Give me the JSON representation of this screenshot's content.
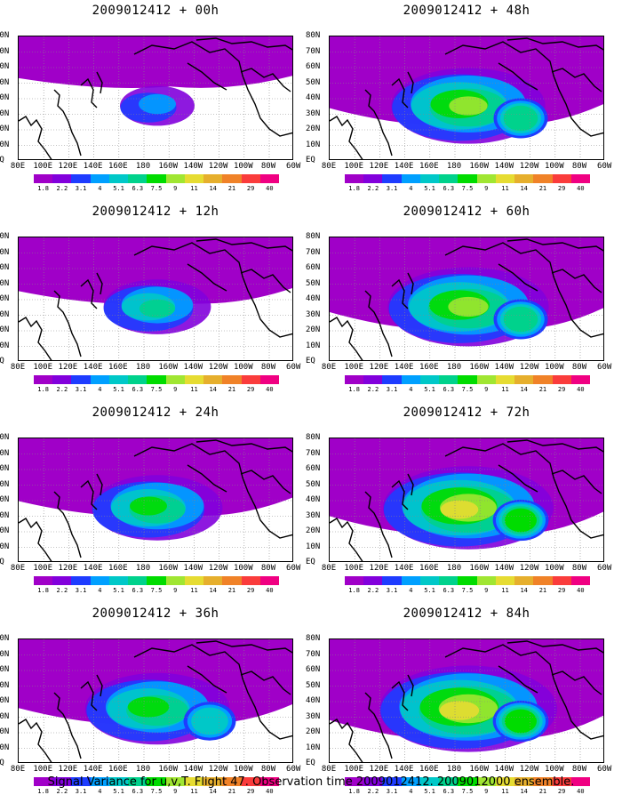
{
  "panels": [
    {
      "title": "2009012412 + 00h",
      "intensity": 0.15,
      "spread": 0.25
    },
    {
      "title": "2009012412 + 48h",
      "intensity": 0.62,
      "spread": 0.75
    },
    {
      "title": "2009012412 + 12h",
      "intensity": 0.35,
      "spread": 0.45
    },
    {
      "title": "2009012412 + 60h",
      "intensity": 0.68,
      "spread": 0.8
    },
    {
      "title": "2009012412 + 24h",
      "intensity": 0.45,
      "spread": 0.6
    },
    {
      "title": "2009012412 + 72h",
      "intensity": 0.72,
      "spread": 0.85
    },
    {
      "title": "2009012412 + 36h",
      "intensity": 0.55,
      "spread": 0.7
    },
    {
      "title": "2009012412 + 84h",
      "intensity": 0.78,
      "spread": 0.9
    }
  ],
  "lat_labels": [
    "80N",
    "70N",
    "60N",
    "50N",
    "40N",
    "30N",
    "20N",
    "10N",
    "EQ"
  ],
  "lon_labels": [
    "80E",
    "100E",
    "120E",
    "140E",
    "160E",
    "180",
    "160W",
    "140W",
    "120W",
    "100W",
    "80W",
    "60W"
  ],
  "colorbar": {
    "labels": [
      "1.8",
      "2.2",
      "3.1",
      "4",
      "5.1",
      "6.3",
      "7.5",
      "9",
      "11",
      "14",
      "21",
      "29",
      "40"
    ],
    "colors": [
      "#a000c8",
      "#8200dc",
      "#1e3cff",
      "#00a0ff",
      "#00c8c8",
      "#00d28c",
      "#00dc00",
      "#a0e632",
      "#e6dc32",
      "#e6af2d",
      "#f08228",
      "#fa3c3c",
      "#f00082"
    ]
  },
  "footer": "Signal Variance for u,v,T. Flight 47. Observation time 2009012412. 2009012000 ensemble."
}
